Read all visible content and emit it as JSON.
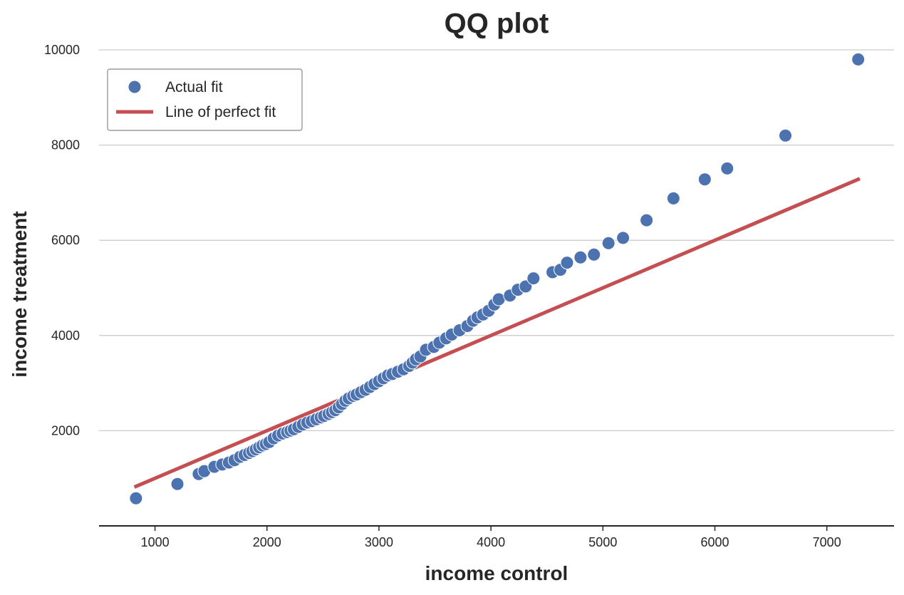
{
  "chart_data": {
    "type": "scatter",
    "title": "QQ plot",
    "xlabel": "income control",
    "ylabel": "income treatment",
    "xlim": [
      500,
      7600
    ],
    "ylim": [
      0,
      10000
    ],
    "x_ticks": [
      1000,
      2000,
      3000,
      4000,
      5000,
      6000,
      7000
    ],
    "y_ticks": [
      2000,
      4000,
      6000,
      8000,
      10000
    ],
    "grid": "horizontal",
    "legend_position": "top-left",
    "colors": {
      "points": "#4c72b0",
      "line": "#c44e52",
      "grid": "#cccccc",
      "axis": "#262626"
    },
    "series": [
      {
        "name": "Actual fit",
        "kind": "scatter",
        "points": [
          [
            830,
            580
          ],
          [
            1200,
            880
          ],
          [
            1390,
            1090
          ],
          [
            1440,
            1150
          ],
          [
            1530,
            1240
          ],
          [
            1600,
            1290
          ],
          [
            1660,
            1330
          ],
          [
            1710,
            1380
          ],
          [
            1760,
            1450
          ],
          [
            1800,
            1490
          ],
          [
            1840,
            1530
          ],
          [
            1870,
            1570
          ],
          [
            1900,
            1610
          ],
          [
            1930,
            1650
          ],
          [
            1960,
            1690
          ],
          [
            1990,
            1720
          ],
          [
            2020,
            1760
          ],
          [
            2060,
            1840
          ],
          [
            2100,
            1900
          ],
          [
            2140,
            1940
          ],
          [
            2180,
            1970
          ],
          [
            2210,
            2000
          ],
          [
            2240,
            2030
          ],
          [
            2280,
            2080
          ],
          [
            2320,
            2130
          ],
          [
            2360,
            2170
          ],
          [
            2400,
            2200
          ],
          [
            2440,
            2240
          ],
          [
            2480,
            2280
          ],
          [
            2510,
            2310
          ],
          [
            2550,
            2350
          ],
          [
            2580,
            2390
          ],
          [
            2610,
            2430
          ],
          [
            2640,
            2490
          ],
          [
            2670,
            2560
          ],
          [
            2700,
            2630
          ],
          [
            2730,
            2680
          ],
          [
            2770,
            2730
          ],
          [
            2800,
            2760
          ],
          [
            2840,
            2810
          ],
          [
            2880,
            2860
          ],
          [
            2920,
            2920
          ],
          [
            2960,
            2980
          ],
          [
            3000,
            3040
          ],
          [
            3040,
            3100
          ],
          [
            3080,
            3160
          ],
          [
            3120,
            3190
          ],
          [
            3170,
            3240
          ],
          [
            3220,
            3290
          ],
          [
            3270,
            3360
          ],
          [
            3300,
            3430
          ],
          [
            3330,
            3500
          ],
          [
            3370,
            3560
          ],
          [
            3420,
            3700
          ],
          [
            3490,
            3760
          ],
          [
            3540,
            3850
          ],
          [
            3600,
            3940
          ],
          [
            3650,
            4020
          ],
          [
            3720,
            4110
          ],
          [
            3790,
            4200
          ],
          [
            3840,
            4310
          ],
          [
            3880,
            4380
          ],
          [
            3930,
            4440
          ],
          [
            3980,
            4520
          ],
          [
            4030,
            4650
          ],
          [
            4070,
            4760
          ],
          [
            4170,
            4840
          ],
          [
            4240,
            4960
          ],
          [
            4310,
            5030
          ],
          [
            4380,
            5200
          ],
          [
            4550,
            5330
          ],
          [
            4620,
            5380
          ],
          [
            4680,
            5530
          ],
          [
            4800,
            5640
          ],
          [
            4920,
            5700
          ],
          [
            5050,
            5940
          ],
          [
            5180,
            6050
          ],
          [
            5390,
            6420
          ],
          [
            5630,
            6880
          ],
          [
            5910,
            7280
          ],
          [
            6110,
            7510
          ],
          [
            6630,
            8200
          ],
          [
            7280,
            9800
          ]
        ]
      },
      {
        "name": "Line of perfect fit",
        "kind": "line",
        "points": [
          [
            830,
            830
          ],
          [
            7280,
            7280
          ]
        ]
      }
    ]
  }
}
